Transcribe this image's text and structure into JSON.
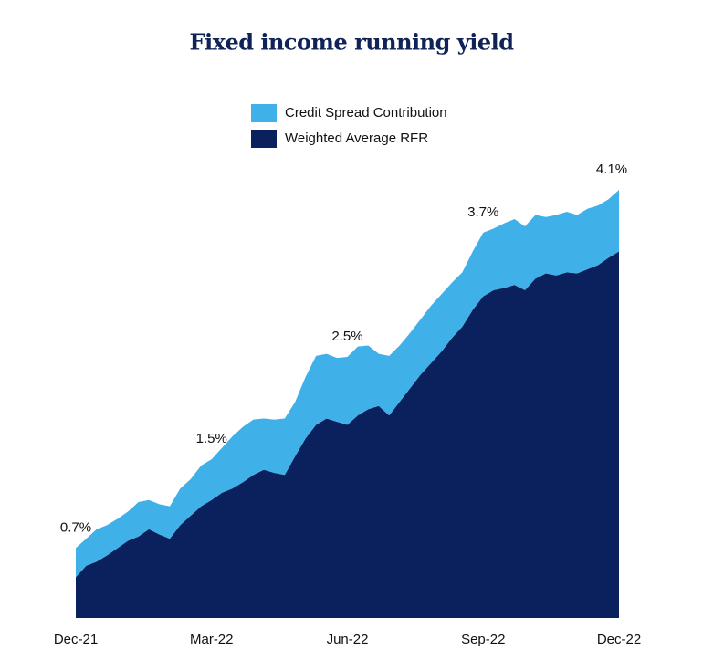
{
  "chart_data": {
    "type": "stacked_area",
    "title": "Fixed income running yield",
    "categories": [
      "Dec-21",
      null,
      null,
      null,
      null,
      null,
      null,
      null,
      null,
      null,
      null,
      null,
      null,
      "Mar-22",
      null,
      null,
      null,
      null,
      null,
      null,
      null,
      null,
      null,
      null,
      null,
      null,
      "Jun-22",
      null,
      null,
      null,
      null,
      null,
      null,
      null,
      null,
      null,
      null,
      null,
      null,
      "Sep-22",
      null,
      null,
      null,
      null,
      null,
      null,
      null,
      null,
      null,
      null,
      null,
      null,
      "Dec-22"
    ],
    "series": [
      {
        "name": "Weighted Average RFR",
        "color": "#0b215e",
        "values": [
          0.39,
          0.5,
          0.54,
          0.6,
          0.67,
          0.74,
          0.78,
          0.85,
          0.8,
          0.76,
          0.89,
          0.98,
          1.07,
          1.13,
          1.2,
          1.24,
          1.3,
          1.37,
          1.42,
          1.39,
          1.37,
          1.55,
          1.72,
          1.85,
          1.91,
          1.88,
          1.85,
          1.94,
          2.0,
          2.03,
          1.94,
          2.07,
          2.2,
          2.33,
          2.44,
          2.55,
          2.68,
          2.79,
          2.95,
          3.08,
          3.14,
          3.16,
          3.19,
          3.14,
          3.25,
          3.3,
          3.28,
          3.31,
          3.3,
          3.34,
          3.38,
          3.45,
          3.51
        ]
      },
      {
        "name": "Credit Spread Contribution",
        "color": "#40b1e8",
        "values": [
          0.28,
          0.26,
          0.31,
          0.29,
          0.28,
          0.28,
          0.33,
          0.28,
          0.29,
          0.31,
          0.35,
          0.35,
          0.39,
          0.39,
          0.43,
          0.5,
          0.53,
          0.53,
          0.49,
          0.51,
          0.54,
          0.52,
          0.59,
          0.66,
          0.62,
          0.61,
          0.65,
          0.66,
          0.61,
          0.5,
          0.57,
          0.54,
          0.53,
          0.53,
          0.55,
          0.55,
          0.53,
          0.52,
          0.56,
          0.61,
          0.59,
          0.62,
          0.63,
          0.61,
          0.61,
          0.54,
          0.58,
          0.58,
          0.56,
          0.58,
          0.57,
          0.56,
          0.59
        ]
      }
    ],
    "annotations": [
      {
        "text": "0.7%",
        "index": 0
      },
      {
        "text": "1.5%",
        "index": 13
      },
      {
        "text": "2.5%",
        "index": 26
      },
      {
        "text": "3.7%",
        "index": 39
      },
      {
        "text": "4.1%",
        "index": 52
      }
    ]
  }
}
